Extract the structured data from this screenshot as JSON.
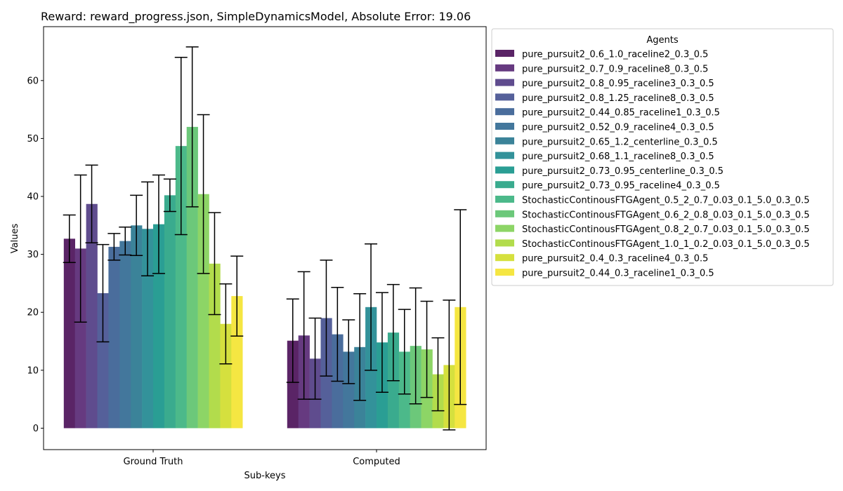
{
  "chart_data": {
    "type": "bar",
    "title": "Reward: reward_progress.json, SimpleDynamicsModel, Absolute Error: 19.06",
    "xlabel": "Sub-keys",
    "ylabel": "Values",
    "categories": [
      "Ground Truth",
      "Computed"
    ],
    "ylim": [
      -3.7,
      69.3
    ],
    "yticks": [
      0,
      10,
      20,
      30,
      40,
      50,
      60
    ],
    "legend": {
      "title": "Agents",
      "placement": "outside-right-top"
    },
    "grid": false,
    "error_bars": true,
    "series": [
      {
        "name": "pure_pursuit2_0.6_1.0_raceline2_0.3_0.5",
        "color": "#5a2466",
        "values": [
          32.7,
          15.1
        ],
        "errors": [
          4.1,
          7.2
        ]
      },
      {
        "name": "pure_pursuit2_0.7_0.9_raceline8_0.3_0.5",
        "color": "#663a80",
        "values": [
          31.0,
          16.0
        ],
        "errors": [
          12.7,
          11.0
        ]
      },
      {
        "name": "pure_pursuit2_0.8_0.95_raceline3_0.3_0.5",
        "color": "#5f4c8e",
        "values": [
          38.7,
          12.0
        ],
        "errors": [
          6.7,
          7.0
        ]
      },
      {
        "name": "pure_pursuit2_0.8_1.25_raceline8_0.3_0.5",
        "color": "#55609a",
        "values": [
          23.3,
          19.0
        ],
        "errors": [
          8.4,
          10.0
        ]
      },
      {
        "name": "pure_pursuit2_0.44_0.85_raceline1_0.3_0.5",
        "color": "#4a6d9c",
        "values": [
          31.3,
          16.2
        ],
        "errors": [
          2.3,
          8.1
        ]
      },
      {
        "name": "pure_pursuit2_0.52_0.9_raceline4_0.3_0.5",
        "color": "#43779c",
        "values": [
          32.3,
          13.2
        ],
        "errors": [
          2.4,
          5.5
        ]
      },
      {
        "name": "pure_pursuit2_0.65_1.2_centerline_0.3_0.5",
        "color": "#3b8399",
        "values": [
          35.0,
          14.0
        ],
        "errors": [
          5.2,
          9.2
        ]
      },
      {
        "name": "pure_pursuit2_0.68_1.1_raceline8_0.3_0.5",
        "color": "#33929a",
        "values": [
          34.4,
          20.9
        ],
        "errors": [
          8.1,
          10.9
        ]
      },
      {
        "name": "pure_pursuit2_0.73_0.95_centerline_0.3_0.5",
        "color": "#2a9e94",
        "values": [
          35.2,
          14.8
        ],
        "errors": [
          8.5,
          8.6
        ]
      },
      {
        "name": "pure_pursuit2_0.73_0.95_raceline4_0.3_0.5",
        "color": "#3aab8e",
        "values": [
          40.2,
          16.5
        ],
        "errors": [
          2.8,
          8.3
        ]
      },
      {
        "name": "StochasticContinousFTGAgent_0.5_2_0.7_0.03_0.1_5.0_0.3_0.5",
        "color": "#4cb98a",
        "values": [
          48.7,
          13.2
        ],
        "errors": [
          15.3,
          7.3
        ]
      },
      {
        "name": "StochasticContinousFTGAgent_0.6_2_0.8_0.03_0.1_5.0_0.3_0.5",
        "color": "#6cc87a",
        "values": [
          52.0,
          14.2
        ],
        "errors": [
          13.8,
          10.0
        ]
      },
      {
        "name": "StochasticContinousFTGAgent_0.8_2_0.7_0.03_0.1_5.0_0.3_0.5",
        "color": "#8dd566",
        "values": [
          40.4,
          13.6
        ],
        "errors": [
          13.7,
          8.3
        ]
      },
      {
        "name": "StochasticContinousFTGAgent_1.0_1_0.2_0.03_0.1_5.0_0.3_0.5",
        "color": "#b2dc4c",
        "values": [
          28.4,
          9.3
        ],
        "errors": [
          8.8,
          6.3
        ]
      },
      {
        "name": "pure_pursuit2_0.4_0.3_raceline4_0.3_0.5",
        "color": "#d5e03e",
        "values": [
          18.0,
          10.9
        ],
        "errors": [
          6.9,
          11.2
        ]
      },
      {
        "name": "pure_pursuit2_0.44_0.3_raceline1_0.3_0.5",
        "color": "#f5e642",
        "values": [
          22.8,
          20.9
        ],
        "errors": [
          6.9,
          16.8
        ]
      }
    ]
  }
}
